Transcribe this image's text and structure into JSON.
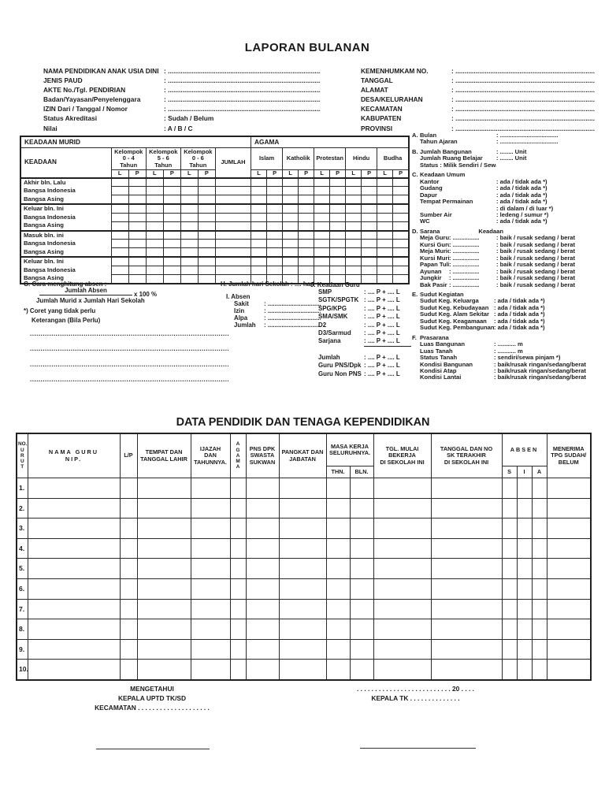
{
  "titles": {
    "main": "LAPORAN BULANAN",
    "second": "DATA PENDIDIK DAN TENAGA KEPENDIDIKAN"
  },
  "header_left": [
    {
      "label": "NAMA PENDIDIKAN ANAK USIA DINI",
      "value": ": ...................................................................................................."
    },
    {
      "label": "JENIS PAUD",
      "value": ": ...................................................................................................."
    },
    {
      "label": "AKTE No./Tgl. PENDIRIAN",
      "value": ": ...................................................................................................."
    },
    {
      "label": "Badan/Yayasan/Penyelenggara",
      "value": ": ...................................................................................................."
    },
    {
      "label": "IZIN Dari / Tanggal / Nomor",
      "value": ": ...................................................................................................."
    },
    {
      "label": "Status Akreditasi",
      "value": ": Sudah / Belum"
    },
    {
      "label": "Nilai",
      "value": ": A / B / C"
    }
  ],
  "header_right": [
    {
      "label": "KEMENHUMKAM NO.",
      "value": ": ...................................................................................................."
    },
    {
      "label": "TANGGAL",
      "value": ": ...................................................................................................."
    },
    {
      "label": "ALAMAT",
      "value": ": ...................................................................................................."
    },
    {
      "label": "DESA/KELURAHAN",
      "value": ": ...................................................................................................."
    },
    {
      "label": "KECAMATAN",
      "value": ": ...................................................................................................."
    },
    {
      "label": "KABUPATEN",
      "value": ": ...................................................................................................."
    },
    {
      "label": "PROVINSI",
      "value": ": ...................................................................................................."
    }
  ],
  "murid_table": {
    "title": "KEADAAN MURID",
    "agama_title": "AGAMA",
    "keadaan": "KEADAAN",
    "jumlah": "JUMLAH",
    "l": "L",
    "p": "P",
    "kelompok": [
      [
        "Kelompok",
        "0 - 4",
        "Tahun"
      ],
      [
        "Kelompok",
        "5 - 6",
        "Tahun"
      ],
      [
        "Kelompok",
        "0 - 6",
        "Tahun"
      ]
    ],
    "agama": [
      "Islam",
      "Katholik",
      "Protestan",
      "Hindu",
      "Budha"
    ],
    "groups": [
      [
        "Akhir bln. Lalu",
        "Bangsa Indonesia",
        "Bangsa Asing"
      ],
      [
        "Keluar bln. Ini",
        "Bangsa Indonesia",
        "Bangsa Asing"
      ],
      [
        "Masuk bln. ini",
        "Bangsa Indonesia",
        "Bangsa Asing"
      ],
      [
        "Keluar bln. Ini",
        "Bangsa Indonesia",
        "Bangsa Asing"
      ]
    ]
  },
  "right_panel": [
    {
      "id": "A",
      "letter": "A.",
      "heading": "",
      "rows": [
        {
          "label": "Bulan",
          "value": ": ..................................."
        },
        {
          "label": "Tahun Ajaran",
          "value": ": ..................................."
        }
      ]
    },
    {
      "id": "B",
      "letter": "B.",
      "heading": "",
      "rows": [
        {
          "label": "Jumlah Bangunan",
          "value": ": ........ Unit"
        },
        {
          "label": "Jumlah Ruang Belajar",
          "value": ": ........ Unit"
        },
        {
          "label": "Status : Milik Sendiri / Sewa Pinjam *)",
          "value": ""
        }
      ]
    },
    {
      "id": "C",
      "letter": "C.",
      "heading": "Keadaan Umum",
      "rows": [
        {
          "label": "Kantor",
          "value": ": ada / tidak ada *)"
        },
        {
          "label": "Gudang",
          "value": ": ada / tidak ada *)"
        },
        {
          "label": "Dapur",
          "value": ": ada / tidak ada *)"
        },
        {
          "label": "Tempat Permainan",
          "value": ": ada / tidak ada *)"
        },
        {
          "label": "",
          "value": ": di dalam / di luar *)"
        },
        {
          "label": "Sumber Air",
          "value": ": ledeng / sumur *)"
        },
        {
          "label": "WC",
          "value": ": ada / tidak ada *)"
        }
      ]
    },
    {
      "id": "D",
      "letter": "D.",
      "heading": "Sarana",
      "heading2": "Keadaan",
      "rows": [
        {
          "label": "Meja Guru",
          "mid": ": ................",
          "value": ": baik / rusak sedang / berat"
        },
        {
          "label": "Kursi Guru",
          "mid": ": ................",
          "value": ": baik / rusak sedang / berat"
        },
        {
          "label": "Meja Murid",
          "mid": ": ................",
          "value": ": baik / rusak sedang / berat"
        },
        {
          "label": "Kursi Murid",
          "mid": ": ................",
          "value": ": baik / rusak sedang / berat"
        },
        {
          "label": "Papan Tulis",
          "mid": ": ................",
          "value": ": baik / rusak sedang / berat"
        },
        {
          "label": "Ayunan",
          "mid": ": ................",
          "value": ": baik / rusak sedang / berat"
        },
        {
          "label": "Jungkir",
          "mid": ": ................",
          "value": ": baik / rusak sedang / berat"
        },
        {
          "label": "Bak Pasir",
          "mid": ": ................",
          "value": ": baik / rusak sedang / berat"
        }
      ]
    },
    {
      "id": "E",
      "letter": "E.",
      "heading": "Sudut Kegiatan",
      "rows": [
        {
          "label": "Sudut Keg. Keluarga",
          "value": ": ada / tidak ada *)"
        },
        {
          "label": "Sudut Keg. Kebudayaan",
          "value": ": ada / tidak ada *)"
        },
        {
          "label": "Sudut Keg. Alam Sekitar",
          "value": ": ada / tidak ada *)"
        },
        {
          "label": "Sudut Keg. Keagamaan",
          "value": ": ada / tidak ada *)"
        },
        {
          "label": "Sudut Keg. Pembangunan",
          "value": ": ada / tidak ada *)"
        }
      ]
    },
    {
      "id": "F",
      "letter": "F.",
      "heading": "Prasarana",
      "rows": [
        {
          "label": "Luas Bangunan",
          "value": ": ........... m"
        },
        {
          "label": "Luas Tanah",
          "value": ": ........... m"
        },
        {
          "label": "Status Tanah",
          "value": ": sendiri/sewa pinjam *)"
        },
        {
          "label": "Kondisi Bangunan",
          "value": ": baik/rusak ringan/sedang/berat"
        },
        {
          "label": "Kondisi Atap",
          "value": ": baik/rusak ringan/sedang/berat"
        },
        {
          "label": "Kondisi Lantai",
          "value": ": baik/rusak ringan/sedang/berat"
        }
      ]
    }
  ],
  "section_g": {
    "title": "G. Cara menghitung absen :",
    "fraction_top": "Jumlah Absen",
    "fraction_bottom": "Jumlah Murid x Jumlah Hari Sekolah",
    "multiplier": "x 100 %",
    "note1": "*) Coret yang tidak perlu",
    "note2": "Keterangan (Bila Perlu)"
  },
  "section_h": {
    "label": "H. Jumlah hari Sekolah",
    "value": ": .... hari"
  },
  "section_i": {
    "title": "I. Absen",
    "rows": [
      {
        "label": "Sakit",
        "value": ": ................................"
      },
      {
        "label": "Izin",
        "value": ": ................................"
      },
      {
        "label": "Alpa",
        "value": ": ................................"
      },
      {
        "label": "Jumlah",
        "value": ": ................................"
      }
    ]
  },
  "section_j": {
    "title": "J. Keadaan Guru",
    "rows": [
      {
        "label": "SMP",
        "value": ": .... P + .... L"
      },
      {
        "label": "SGTK/SPGTK",
        "value": ": .... P + .... L"
      },
      {
        "label": "SPG/KPG",
        "value": ": .... P + .... L"
      },
      {
        "label": "SMA/SMK",
        "value": ": .... P + .... L"
      },
      {
        "label": "D2",
        "value": ": .... P + .... L"
      },
      {
        "label": "D3/Sarmud",
        "value": ": .... P + .... L"
      },
      {
        "label": "Sarjana",
        "value": ": .... P + .... L",
        "underline": true
      }
    ],
    "rows2": [
      {
        "label": "Jumlah",
        "value": ": .... P + .... L"
      },
      {
        "label": "Guru PNS/Dpk",
        "value": ": .... P + .... L"
      },
      {
        "label": "Guru Non PNS",
        "value": ": .... P + .... L"
      }
    ]
  },
  "notes_lines": [
    "..................................................................................................................................",
    "..................................................................................................................................",
    "..................................................................................................................................",
    ".................................................................................................................................."
  ],
  "teacher_table": {
    "headers": {
      "no_urut": [
        "NO.",
        "U",
        "R",
        "U",
        "T"
      ],
      "nama": [
        "NAMA GURU",
        "NIP."
      ],
      "lp": "L/P",
      "tempat": [
        "TEMPAT DAN",
        "TANGGAL LAHIR"
      ],
      "ijazah": [
        "IJAZAH",
        "DAN",
        "TAHUNNYA."
      ],
      "agama": [
        "A",
        "G",
        "A",
        "M",
        "A"
      ],
      "pns": [
        "PNS DPK",
        "SWASTA",
        "SUKWAN"
      ],
      "pangkat": [
        "PANGKAT DAN",
        "JABATAN"
      ],
      "masa": [
        "MASA KERJA",
        "SELURUHNYA."
      ],
      "thn": "THN.",
      "bln": "BLN.",
      "tgl_mulai": [
        "TGL. MULAI",
        "BEKERJA",
        "DI SEKOLAH INI"
      ],
      "sk": [
        "TANGGAL DAN NO",
        "SK TERAKHIR",
        "DI SEKOLAH INI"
      ],
      "absen": "ABSEN",
      "s": "S",
      "i": "I",
      "a": "A",
      "menerima": [
        "MENERIMA",
        "TPG SUDAH/",
        "BELUM"
      ]
    },
    "rows": [
      "1.",
      "2.",
      "3.",
      "4.",
      "5.",
      "6.",
      "7.",
      "8.",
      "9.",
      "10."
    ]
  },
  "footer": {
    "left": [
      "MENGETAHUI",
      "KEPALA UPTD TK/SD",
      "KECAMATAN  . . . . . . . . . . . . . . . . . . . ."
    ],
    "right_date": ". . . . . . . . . . . . . . . . . . . . . . . . . . 20 . . . .",
    "right_title": "KEPALA TK . . . . . . . . . . . . . ."
  }
}
